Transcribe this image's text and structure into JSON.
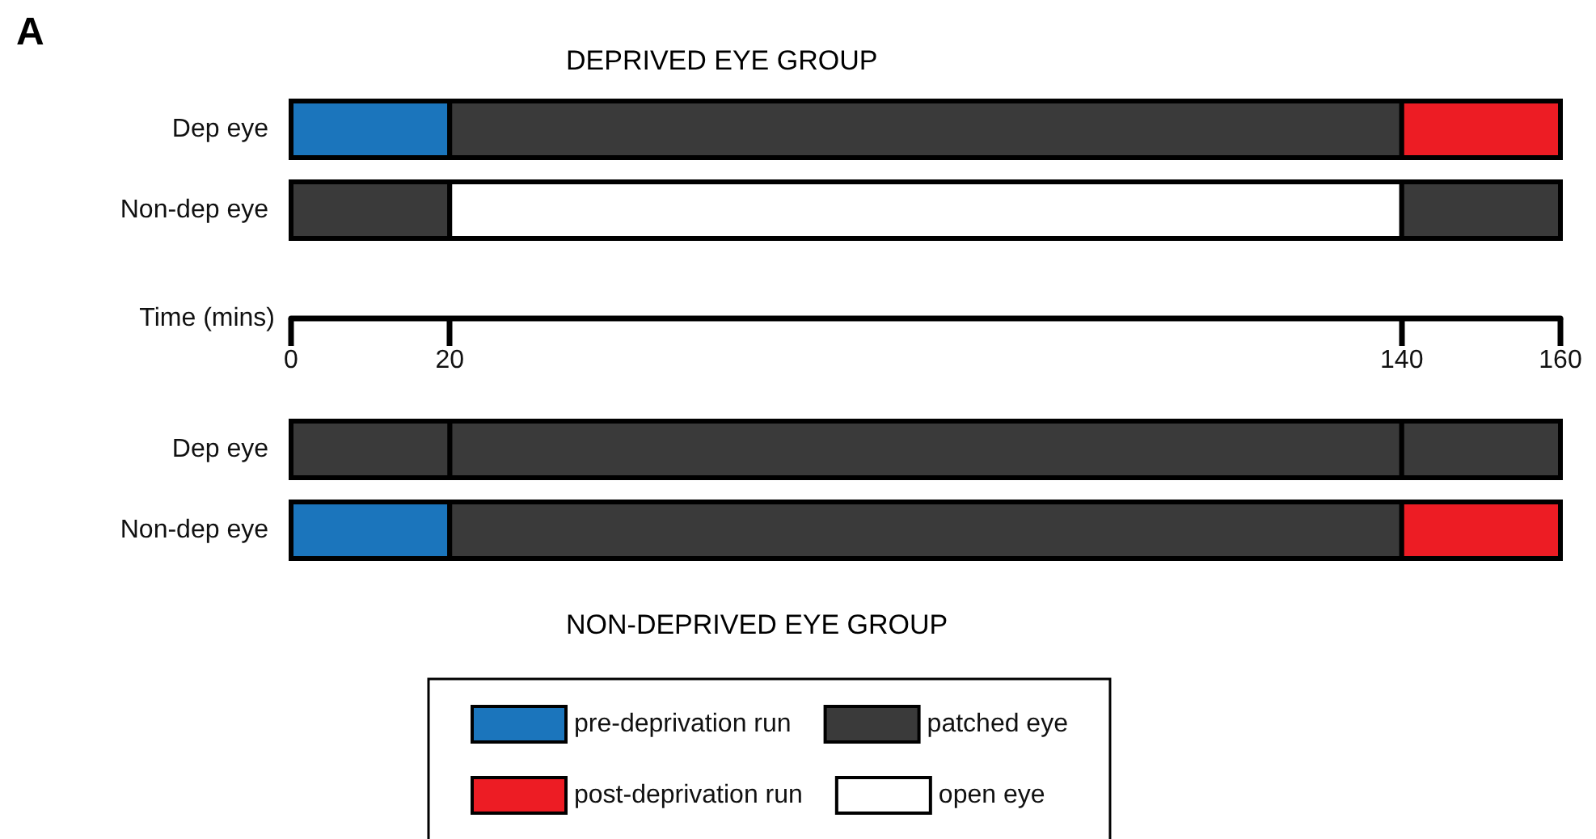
{
  "chart_data": [
    {
      "type": "bar",
      "orientation": "horizontal",
      "title": "DEPRIVED EYE GROUP",
      "annotations": [
        "A"
      ],
      "xlabel": "Time (mins)",
      "categories": [
        "Dep eye",
        "Non-dep eye"
      ],
      "xlim": [
        0,
        160
      ],
      "xticks": [
        0,
        20,
        140,
        160
      ],
      "legend": "bottom",
      "series": [
        {
          "name": "pre-deprivation run",
          "color": "#1b75bc",
          "values": [
            20,
            null
          ],
          "base": [
            0,
            null
          ]
        },
        {
          "name": "patched eye",
          "color": "#3a3a3a",
          "values": [
            120,
            20
          ],
          "base": [
            20,
            0
          ]
        },
        {
          "name": "post-deprivation run",
          "color": "#ed1c24",
          "values": [
            20,
            null
          ],
          "base": [
            140,
            null
          ]
        },
        {
          "name": "open eye",
          "color": "#ffffff",
          "values": [
            null,
            120
          ],
          "base": [
            null,
            20
          ]
        },
        {
          "color": "#3a3a3a",
          "values": [
            null,
            20
          ],
          "base": [
            null,
            140
          ]
        }
      ]
    },
    {
      "type": "bar",
      "orientation": "horizontal",
      "title": "NON-DEPRIVED EYE GROUP",
      "categories": [
        "Dep eye",
        "Non-dep eye"
      ],
      "xlim": [
        0,
        160
      ],
      "xticks": [
        0,
        20,
        140,
        160
      ],
      "tick_labels": "y",
      "series": [
        {
          "color": "#1b75bc",
          "values": [
            null,
            20
          ],
          "base": [
            null,
            0
          ]
        },
        {
          "color": "#3a3a3a",
          "values": [
            120,
            120
          ],
          "base": [
            20,
            20
          ]
        },
        {
          "color": "#ed1c24",
          "values": [
            null,
            20
          ],
          "base": [
            null,
            140
          ]
        },
        {
          "color": "#3a3a3a",
          "values": [
            20,
            null
          ],
          "base": [
            0,
            null
          ]
        },
        {
          "color": "#3a3a3a",
          "values": [
            20,
            null
          ],
          "base": [
            140,
            null
          ]
        }
      ]
    }
  ]
}
